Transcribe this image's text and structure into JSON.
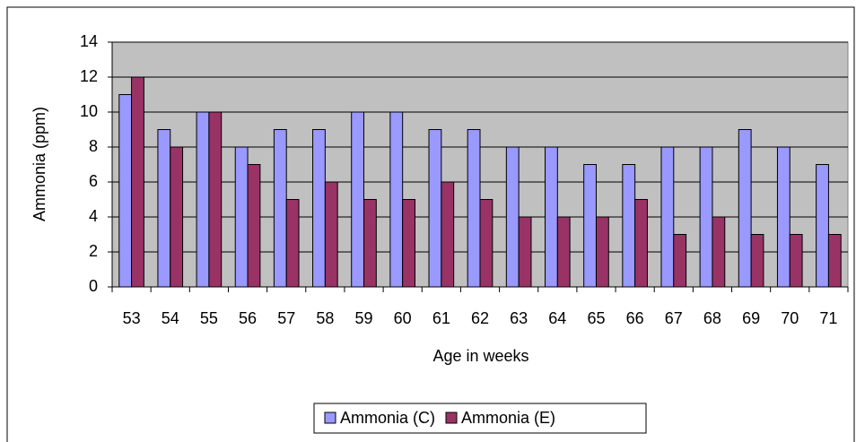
{
  "chart_data": {
    "type": "bar",
    "x_label": "Age in weeks",
    "y_label": "Ammonia (ppm)",
    "categories": [
      "53",
      "54",
      "55",
      "56",
      "57",
      "58",
      "59",
      "60",
      "61",
      "62",
      "63",
      "64",
      "65",
      "66",
      "67",
      "68",
      "69",
      "70",
      "71"
    ],
    "series": [
      {
        "name": "Ammonia (C)",
        "color": "#9999ff",
        "values": [
          11,
          9,
          10,
          8,
          9,
          9,
          10,
          10,
          9,
          9,
          8,
          8,
          7,
          7,
          8,
          8,
          9,
          8,
          7
        ]
      },
      {
        "name": "Ammonia (E)",
        "color": "#993366",
        "values": [
          12,
          8,
          10,
          7,
          5,
          6,
          5,
          5,
          6,
          5,
          4,
          4,
          4,
          5,
          3,
          4,
          3,
          3,
          3
        ]
      }
    ],
    "ylim": [
      0,
      14
    ],
    "yticks": [
      0,
      2,
      4,
      6,
      8,
      10,
      12,
      14
    ],
    "grid": true,
    "legend": "bottom"
  }
}
